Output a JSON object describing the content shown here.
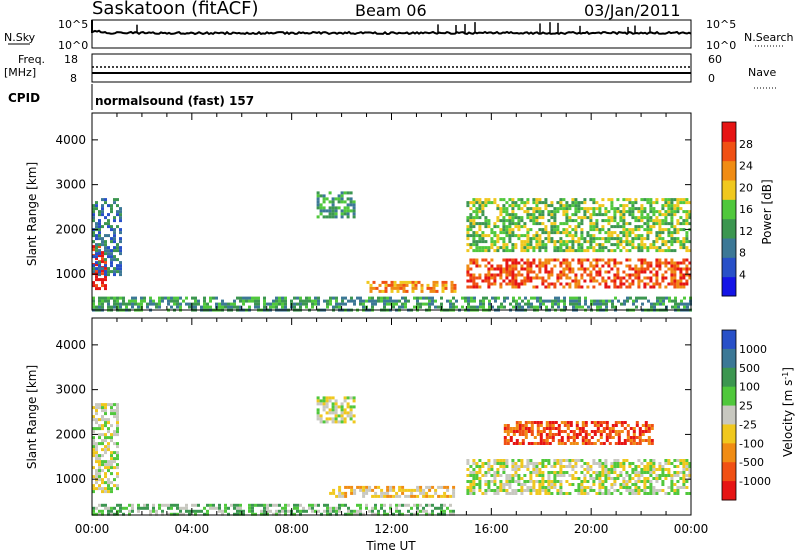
{
  "header": {
    "station": "Saskatoon (fitACF)",
    "beam": "Beam 06",
    "date": "03/Jan/2011"
  },
  "top_panel": {
    "left_label": "N.Sky",
    "right_label": "N.Search",
    "left_ticks": [
      "10^5",
      "10^0"
    ],
    "right_ticks": [
      "10^5",
      "10^0"
    ]
  },
  "freq_panel": {
    "left_label_1": "Freq.",
    "left_label_2": "[MHz]",
    "right_label": "Nave",
    "left_ticks": [
      "18",
      "8"
    ],
    "right_ticks": [
      "60",
      "0"
    ]
  },
  "cpid": {
    "label": "CPID",
    "text": "normalsound (fast) 157"
  },
  "colors": {
    "power_scale": [
      "#1414e6",
      "#2850c8",
      "#3c7896",
      "#3c9650",
      "#50c83c",
      "#f0c81e",
      "#f08c14",
      "#f05014",
      "#e61414"
    ],
    "velocity_scale": [
      "#2850c8",
      "#3c7896",
      "#3c9650",
      "#50c83c",
      "#c8c8c0",
      "#f0c81e",
      "#f08c14",
      "#f05014",
      "#e61414"
    ]
  },
  "chart_data": [
    {
      "type": "heatmap",
      "panel": "power",
      "ylabel": "Slant Range [km]",
      "y_ticks": [
        1000,
        2000,
        3000,
        4000
      ],
      "ylim": [
        200,
        4600
      ],
      "xlim": [
        0,
        24
      ],
      "colorbar_label": "Power [dB]",
      "colorbar_ticks": [
        "28",
        "24",
        "20",
        "16",
        "12",
        "8",
        "4"
      ],
      "features": [
        {
          "t0": 0.0,
          "t1": 0.5,
          "r0": 650,
          "r1": 1650,
          "level": 8
        },
        {
          "t0": 0.0,
          "t1": 1.1,
          "r0": 1000,
          "r1": 2700,
          "level": 2
        },
        {
          "t0": 9.0,
          "t1": 10.5,
          "r0": 2300,
          "r1": 2850,
          "level": 3
        },
        {
          "t0": 11.0,
          "t1": 14.5,
          "r0": 600,
          "r1": 850,
          "level": 6
        },
        {
          "t0": 15.0,
          "t1": 24.0,
          "r0": 700,
          "r1": 1350,
          "level": 7
        },
        {
          "t0": 15.0,
          "t1": 24.0,
          "r0": 1500,
          "r1": 2700,
          "level": 4
        },
        {
          "t0": 0.0,
          "t1": 24.0,
          "r0": 220,
          "r1": 500,
          "level": 3
        }
      ]
    },
    {
      "type": "heatmap",
      "panel": "velocity",
      "ylabel": "Slant Range [km]",
      "xlabel": "Time UT",
      "x_ticks": [
        "00:00",
        "04:00",
        "08:00",
        "12:00",
        "16:00",
        "20:00",
        "00:00"
      ],
      "y_ticks": [
        1000,
        2000,
        3000,
        4000
      ],
      "ylim": [
        200,
        4600
      ],
      "xlim": [
        0,
        24
      ],
      "colorbar_label": "Velocity [m s^-1]",
      "colorbar_ticks": [
        "1000",
        "500",
        "100",
        "25",
        "-25",
        "-100",
        "-500",
        "-1000"
      ],
      "features": [
        {
          "t0": 0.0,
          "t1": 1.0,
          "r0": 700,
          "r1": 2700,
          "level": 4
        },
        {
          "t0": 9.0,
          "t1": 10.5,
          "r0": 2300,
          "r1": 2850,
          "level": 4
        },
        {
          "t0": 9.5,
          "t1": 14.5,
          "r0": 600,
          "r1": 850,
          "level": 5
        },
        {
          "t0": 15.0,
          "t1": 24.0,
          "r0": 700,
          "r1": 1450,
          "level": 4
        },
        {
          "t0": 16.5,
          "t1": 22.5,
          "r0": 1800,
          "r1": 2300,
          "level": 7
        },
        {
          "t0": 0.0,
          "t1": 14.5,
          "r0": 220,
          "r1": 450,
          "level": 3
        }
      ]
    }
  ]
}
